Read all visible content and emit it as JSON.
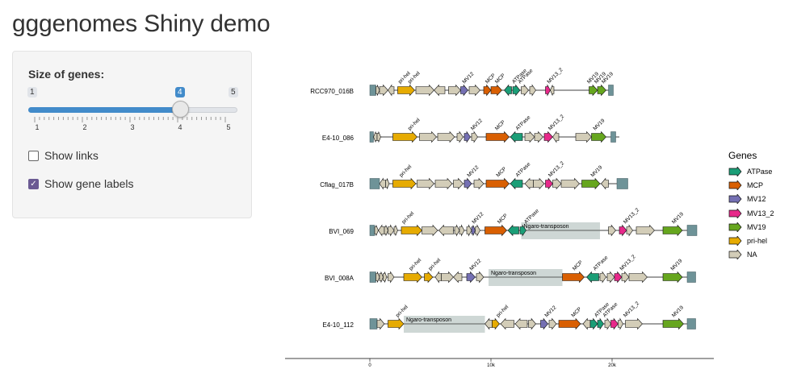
{
  "title": "gggenomes Shiny demo",
  "sidebar": {
    "size_label": "Size of genes:",
    "slider": {
      "min": "1",
      "max": "5",
      "value": "4",
      "ticks": [
        "1",
        "2",
        "3",
        "4",
        "5"
      ]
    },
    "show_links": {
      "label": "Show links",
      "checked": false
    },
    "show_gene_labels": {
      "label": "Show gene labels",
      "checked": true
    }
  },
  "colors": {
    "ATPase": "#1b9e77",
    "MCP": "#d95f02",
    "MV12": "#7570b3",
    "MV13_2": "#e7298a",
    "MV19": "#66a61e",
    "pri-hel": "#e6ab02",
    "NA": "#d3cdb8",
    "transposon": "#ced7d5",
    "contig_end": "#6e9398"
  },
  "legend": {
    "title": "Genes",
    "items": [
      "ATPase",
      "MCP",
      "MV12",
      "MV13_2",
      "MV19",
      "pri-hel",
      "NA"
    ]
  },
  "chart_data": {
    "type": "gene-map",
    "x_ticks": [
      "0",
      "10k",
      "20k"
    ],
    "genomes": [
      {
        "name": "RCC970_016B",
        "length": 20.1,
        "regions": [],
        "genes": [
          [
            0,
            0.5,
            "contig_end",
            1
          ],
          [
            0.5,
            0.3,
            "NA",
            1
          ],
          [
            0.8,
            0.7,
            "NA",
            1
          ],
          [
            1.5,
            0.5,
            "NA",
            -1
          ],
          [
            2.3,
            1.4,
            "pri-hel",
            1
          ],
          [
            3.8,
            1.5,
            "NA",
            1
          ],
          [
            5.3,
            0.9,
            "NA",
            -1
          ],
          [
            6.5,
            1.0,
            "NA",
            1
          ],
          [
            7.5,
            0.6,
            "MV12",
            1
          ],
          [
            8.2,
            0.9,
            "NA",
            1
          ],
          [
            9.4,
            0.6,
            "MCP",
            1
          ],
          [
            10.0,
            0.9,
            "MCP",
            1
          ],
          [
            11.1,
            0.6,
            "ATPase",
            -1
          ],
          [
            11.8,
            0.6,
            "ATPase",
            1
          ],
          [
            12.5,
            0.6,
            "NA",
            1
          ],
          [
            13.2,
            0.5,
            "NA",
            1
          ],
          [
            14.5,
            0.4,
            "MV13_2",
            1
          ],
          [
            14.9,
            0.3,
            "NA",
            -1
          ],
          [
            18.1,
            0.7,
            "MV19",
            1
          ],
          [
            18.8,
            0.7,
            "MV19",
            1
          ],
          [
            19.7,
            0.4,
            "contig_end",
            1
          ]
        ],
        "labels": [
          [
            2.5,
            "pri-hel"
          ],
          [
            3.3,
            "pri-hel"
          ],
          [
            7.8,
            "MV12"
          ],
          [
            9.7,
            "MCP"
          ],
          [
            10.5,
            "MCP"
          ],
          [
            11.9,
            "ATPase"
          ],
          [
            12.4,
            "ATPase"
          ],
          [
            14.8,
            "MV13_2"
          ],
          [
            18.1,
            "MV19"
          ],
          [
            18.7,
            "MV19"
          ],
          [
            19.3,
            "MV19"
          ]
        ]
      },
      {
        "name": "E4-10_086",
        "length": 20.6,
        "regions": [],
        "genes": [
          [
            0,
            0.3,
            "contig_end",
            1
          ],
          [
            0.3,
            0.3,
            "NA",
            -1
          ],
          [
            0.6,
            0.3,
            "NA",
            1
          ],
          [
            1.9,
            2.0,
            "pri-hel",
            1
          ],
          [
            4.1,
            1.4,
            "NA",
            1
          ],
          [
            5.6,
            1.4,
            "NA",
            1
          ],
          [
            7.2,
            0.5,
            "NA",
            1
          ],
          [
            7.8,
            0.5,
            "MV12",
            1
          ],
          [
            8.4,
            0.5,
            "NA",
            1
          ],
          [
            9.6,
            1.9,
            "MCP",
            1
          ],
          [
            11.6,
            1.0,
            "ATPase",
            -1
          ],
          [
            12.8,
            0.8,
            "NA",
            1
          ],
          [
            13.6,
            0.7,
            "NA",
            1
          ],
          [
            14.4,
            0.7,
            "MV13_2",
            1
          ],
          [
            15.1,
            0.5,
            "NA",
            -1
          ],
          [
            17.0,
            1.3,
            "NA",
            1
          ],
          [
            18.3,
            1.2,
            "MV19",
            1
          ],
          [
            19.9,
            0.4,
            "contig_end",
            1
          ]
        ],
        "labels": [
          [
            3.3,
            "pri-hel"
          ],
          [
            8.5,
            "MV12"
          ],
          [
            10.5,
            "MCP"
          ],
          [
            12.2,
            "ATPase"
          ],
          [
            14.9,
            "MV13_2"
          ],
          [
            18.6,
            "MV19"
          ]
        ]
      },
      {
        "name": "Cflag_017B",
        "length": 21.3,
        "regions": [],
        "genes": [
          [
            0,
            0.8,
            "contig_end",
            1
          ],
          [
            0.8,
            0.5,
            "NA",
            -1
          ],
          [
            1.3,
            0.3,
            "NA",
            1
          ],
          [
            1.9,
            1.9,
            "pri-hel",
            1
          ],
          [
            3.9,
            1.4,
            "NA",
            1
          ],
          [
            5.4,
            1.4,
            "NA",
            1
          ],
          [
            6.9,
            0.8,
            "NA",
            1
          ],
          [
            7.8,
            0.6,
            "MV12",
            1
          ],
          [
            8.6,
            0.8,
            "NA",
            1
          ],
          [
            9.6,
            1.9,
            "MCP",
            1
          ],
          [
            11.6,
            1.0,
            "ATPase",
            -1
          ],
          [
            12.8,
            0.7,
            "NA",
            -1
          ],
          [
            13.5,
            0.9,
            "NA",
            1
          ],
          [
            14.5,
            0.6,
            "MV13_2",
            1
          ],
          [
            15.1,
            0.7,
            "NA",
            1
          ],
          [
            15.8,
            1.5,
            "NA",
            1
          ],
          [
            17.5,
            1.5,
            "MV19",
            1
          ],
          [
            19.1,
            0.6,
            "NA",
            -1
          ],
          [
            20.4,
            0.9,
            "contig_end",
            1
          ]
        ],
        "labels": [
          [
            2.6,
            "pri-hel"
          ],
          [
            8.2,
            "MV12"
          ],
          [
            10.6,
            "MCP"
          ],
          [
            12.2,
            "ATPase"
          ],
          [
            14.9,
            "MV13_2"
          ],
          [
            18.4,
            "MV19"
          ]
        ]
      },
      {
        "name": "BVI_069",
        "length": 27.0,
        "regions": [
          [
            12.5,
            19.0,
            "Ngaro-transposon"
          ]
        ],
        "genes": [
          [
            0,
            0.4,
            "contig_end",
            1
          ],
          [
            0.4,
            0.3,
            "NA",
            1
          ],
          [
            0.7,
            0.5,
            "NA",
            -1
          ],
          [
            1.2,
            0.3,
            "NA",
            1
          ],
          [
            1.5,
            0.5,
            "NA",
            1
          ],
          [
            2.0,
            0.3,
            "NA",
            1
          ],
          [
            2.6,
            1.7,
            "pri-hel",
            1
          ],
          [
            4.3,
            1.3,
            "NA",
            1
          ],
          [
            5.7,
            1.2,
            "NA",
            -1
          ],
          [
            7.0,
            0.4,
            "NA",
            1
          ],
          [
            7.4,
            0.4,
            "NA",
            1
          ],
          [
            8.0,
            0.4,
            "NA",
            1
          ],
          [
            8.4,
            0.3,
            "MV12",
            1
          ],
          [
            8.7,
            0.4,
            "NA",
            1
          ],
          [
            9.5,
            1.8,
            "MCP",
            1
          ],
          [
            11.4,
            0.9,
            "ATPase",
            -1
          ],
          [
            12.4,
            0.5,
            "ATPase",
            1
          ],
          [
            19.7,
            0.6,
            "NA",
            1
          ],
          [
            20.6,
            0.6,
            "MV13_2",
            1
          ],
          [
            21.2,
            0.5,
            "NA",
            1
          ],
          [
            22.0,
            1.5,
            "NA",
            1
          ],
          [
            24.2,
            1.6,
            "MV19",
            1
          ],
          [
            26.2,
            0.8,
            "contig_end",
            1
          ]
        ],
        "labels": [
          [
            2.8,
            "pri-hel"
          ],
          [
            8.6,
            "MV12"
          ],
          [
            10.7,
            "MCP"
          ],
          [
            12.9,
            "ATPase"
          ],
          [
            21.1,
            "MV13_2"
          ],
          [
            25.1,
            "MV19"
          ]
        ]
      },
      {
        "name": "BVI_008A",
        "length": 26.9,
        "regions": [
          [
            9.8,
            15.9,
            "Ngaro-transposon"
          ]
        ],
        "genes": [
          [
            0,
            0.5,
            "contig_end",
            1
          ],
          [
            0.5,
            0.3,
            "NA",
            1
          ],
          [
            0.8,
            0.3,
            "NA",
            1
          ],
          [
            1.1,
            0.3,
            "NA",
            1
          ],
          [
            1.5,
            0.5,
            "NA",
            1
          ],
          [
            2.8,
            1.5,
            "pri-hel",
            1
          ],
          [
            4.5,
            0.7,
            "pri-hel",
            1
          ],
          [
            5.4,
            0.5,
            "NA",
            -1
          ],
          [
            5.9,
            1.0,
            "NA",
            1
          ],
          [
            6.9,
            0.7,
            "NA",
            -1
          ],
          [
            8.0,
            0.7,
            "MV12",
            1
          ],
          [
            8.8,
            0.6,
            "NA",
            1
          ],
          [
            15.9,
            1.8,
            "MCP",
            1
          ],
          [
            17.9,
            1.0,
            "ATPase",
            -1
          ],
          [
            19.0,
            0.5,
            "NA",
            1
          ],
          [
            19.6,
            0.6,
            "NA",
            1
          ],
          [
            20.2,
            0.6,
            "MV13_2",
            1
          ],
          [
            20.8,
            0.6,
            "NA",
            1
          ],
          [
            21.4,
            1.5,
            "NA",
            1
          ],
          [
            24.2,
            1.6,
            "MV19",
            1
          ],
          [
            26.2,
            0.7,
            "contig_end",
            1
          ]
        ],
        "labels": [
          [
            3.4,
            "pri-hel"
          ],
          [
            5.0,
            "pri-hel"
          ],
          [
            8.4,
            "MV12"
          ],
          [
            16.9,
            "MCP"
          ],
          [
            18.6,
            "ATPase"
          ],
          [
            20.8,
            "MV13_2"
          ],
          [
            25.0,
            "MV19"
          ]
        ]
      },
      {
        "name": "E4-10_112",
        "length": 26.9,
        "regions": [
          [
            2.8,
            9.5,
            "Ngaro-transposon"
          ]
        ],
        "genes": [
          [
            0,
            0.6,
            "contig_end",
            1
          ],
          [
            0.6,
            0.6,
            "NA",
            1
          ],
          [
            1.5,
            1.3,
            "pri-hel",
            1
          ],
          [
            9.5,
            0.6,
            "NA",
            -1
          ],
          [
            10.1,
            0.6,
            "pri-hel",
            1
          ],
          [
            10.8,
            1.1,
            "NA",
            -1
          ],
          [
            12.0,
            1.0,
            "NA",
            -1
          ],
          [
            13.1,
            0.6,
            "NA",
            1
          ],
          [
            14.1,
            0.6,
            "MV12",
            1
          ],
          [
            14.8,
            0.6,
            "NA",
            1
          ],
          [
            15.6,
            1.8,
            "MCP",
            1
          ],
          [
            17.6,
            0.6,
            "NA",
            -1
          ],
          [
            18.2,
            0.6,
            "ATPase",
            1
          ],
          [
            18.8,
            0.5,
            "ATPase",
            1
          ],
          [
            19.4,
            0.5,
            "NA",
            1
          ],
          [
            19.9,
            0.6,
            "MV13_2",
            1
          ],
          [
            20.5,
            0.4,
            "NA",
            1
          ],
          [
            21.1,
            1.4,
            "NA",
            1
          ],
          [
            24.2,
            1.7,
            "MV19",
            1
          ],
          [
            26.2,
            0.7,
            "contig_end",
            1
          ]
        ],
        "labels": [
          [
            2.3,
            "pri-hel"
          ],
          [
            10.6,
            "pri-hel"
          ],
          [
            14.6,
            "MV12"
          ],
          [
            16.8,
            "MCP"
          ],
          [
            18.7,
            "ATPase"
          ],
          [
            19.4,
            "ATPase"
          ],
          [
            21.1,
            "MV13_2"
          ],
          [
            25.1,
            "MV19"
          ]
        ]
      }
    ]
  }
}
